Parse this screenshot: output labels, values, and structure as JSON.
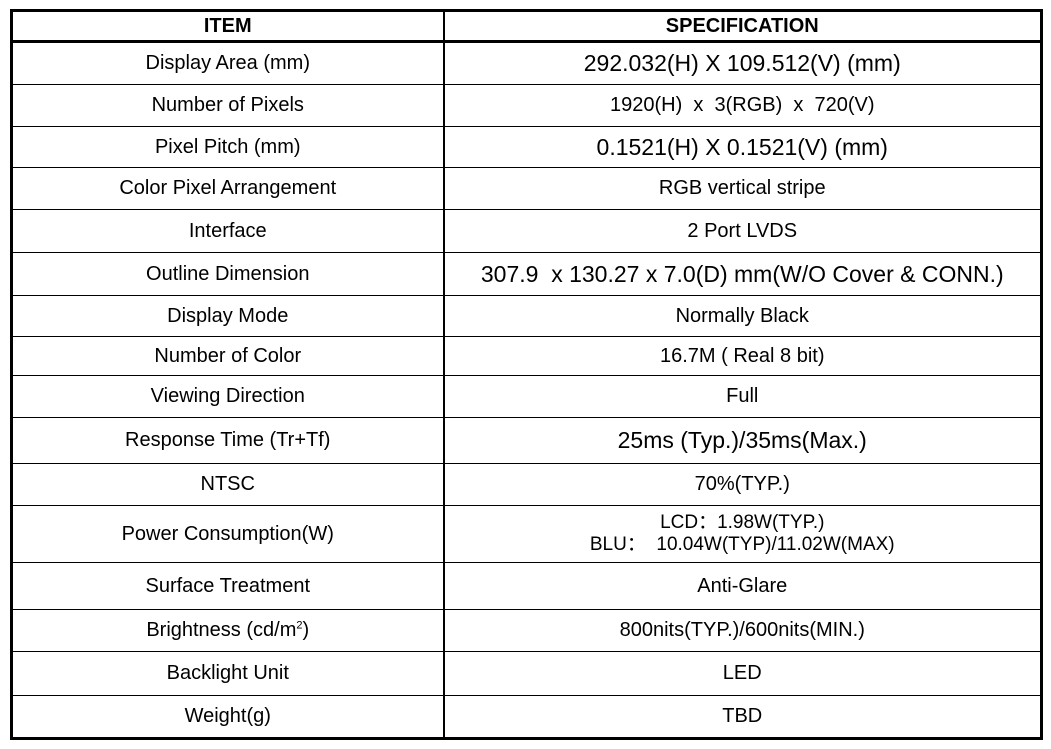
{
  "header": {
    "item": "ITEM",
    "specification": "SPECIFICATION"
  },
  "rows": [
    {
      "item": "Display Area (mm)",
      "spec": "292.032(H) X 109.512(V) (mm)"
    },
    {
      "item": "Number of Pixels",
      "spec": "1920(H)  x  3(RGB)  x  720(V)"
    },
    {
      "item": "Pixel Pitch (mm)",
      "spec": "0.1521(H) X 0.1521(V) (mm)"
    },
    {
      "item": "Color Pixel Arrangement",
      "spec": "RGB vertical stripe"
    },
    {
      "item": "Interface",
      "spec": "2 Port LVDS"
    },
    {
      "item": "Outline Dimension",
      "spec": "307.9  x 130.27 x 7.0(D) mm(W/O Cover & CONN.)"
    },
    {
      "item": "Display Mode",
      "spec": "Normally Black"
    },
    {
      "item": "Number of Color",
      "spec": "16.7M ( Real 8 bit)"
    },
    {
      "item": "Viewing Direction",
      "spec": "Full"
    },
    {
      "item": "Response Time (Tr+Tf)",
      "spec": "25ms (Typ.)/35ms(Max.)"
    },
    {
      "item": "NTSC",
      "spec": "70%(TYP.)"
    },
    {
      "item": "Power Consumption(W)",
      "spec_line1": "LCD：1.98W(TYP.)",
      "spec_line2": "BLU：  10.04W(TYP)/11.02W(MAX)"
    },
    {
      "item": "Surface Treatment",
      "spec": "Anti-Glare"
    },
    {
      "item": "Brightness (cd/m",
      "item_sup": "2",
      "item_suffix": ")",
      "spec": "800nits(TYP.)/600nits(MIN.)"
    },
    {
      "item": "Backlight Unit",
      "spec": "LED"
    },
    {
      "item": "Weight(g)",
      "spec": "TBD"
    }
  ]
}
